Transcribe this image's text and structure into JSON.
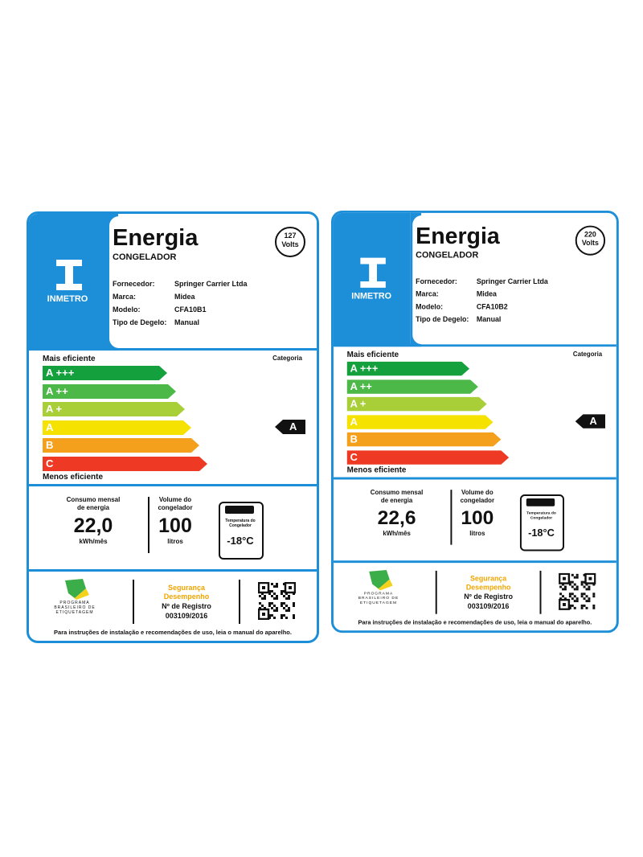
{
  "labels": [
    {
      "title": "Energia",
      "product": "CONGELADOR",
      "voltage": "127",
      "voltage_unit": "Volts",
      "logo": "INMETRO",
      "fields": [
        {
          "label": "Fornecedor:",
          "value": "Springer Carrier Ltda"
        },
        {
          "label": "Marca:",
          "value": "Midea"
        },
        {
          "label": "Modelo:",
          "value": "CFA10B1"
        },
        {
          "label": "Tipo de Degelo:",
          "value": "Manual"
        }
      ],
      "most_efficient": "Mais eficiente",
      "category_heading": "Categoria",
      "classes": [
        "A +++",
        "A ++",
        "A +",
        "A",
        "B",
        "C"
      ],
      "category": "A",
      "least_efficient": "Menos eficiente",
      "consumption": {
        "label": [
          "Consumo mensal",
          "de energia"
        ],
        "value": "22,0",
        "unit": "kWh/mês"
      },
      "volume": {
        "label": [
          "Volume do",
          "congelador"
        ],
        "value": "100",
        "unit": "litros"
      },
      "temperature": {
        "label": [
          "Temperatura do",
          "Congelador"
        ],
        "value": "-18°C"
      },
      "program": [
        "PROGRAMA",
        "BRASILEIRO DE",
        "ETIQUETAGEM"
      ],
      "safety": [
        "Segurança",
        "Desempenho"
      ],
      "registry_label": "Nº de Registro",
      "registry": "003109/2016",
      "footer": "Para instruções de instalação e recomendações de uso, leia o manual do aparelho."
    },
    {
      "title": "Energia",
      "product": "CONGELADOR",
      "voltage": "220",
      "voltage_unit": "Volts",
      "logo": "INMETRO",
      "fields": [
        {
          "label": "Fornecedor:",
          "value": "Springer Carrier Ltda"
        },
        {
          "label": "Marca:",
          "value": "Midea"
        },
        {
          "label": "Modelo:",
          "value": "CFA10B2"
        },
        {
          "label": "Tipo de Degelo:",
          "value": "Manual"
        }
      ],
      "most_efficient": "Mais eficiente",
      "category_heading": "Categoria",
      "classes": [
        "A +++",
        "A ++",
        "A +",
        "A",
        "B",
        "C"
      ],
      "category": "A",
      "least_efficient": "Menos eficiente",
      "consumption": {
        "label": [
          "Consumo mensal",
          "de energia"
        ],
        "value": "22,6",
        "unit": "kWh/mês"
      },
      "volume": {
        "label": [
          "Volume do",
          "congelador"
        ],
        "value": "100",
        "unit": "litros"
      },
      "temperature": {
        "label": [
          "Temperatura do",
          "Congelador"
        ],
        "value": "-18°C"
      },
      "program": [
        "PROGRAMA",
        "BRASILEIRO DE",
        "ETIQUETAGEM"
      ],
      "safety": [
        "Segurança",
        "Desempenho"
      ],
      "registry_label": "Nº de Registro",
      "registry": "003109/2016",
      "footer": "Para instruções de instalação e recomendações de uso, leia o manual do aparelho."
    }
  ]
}
